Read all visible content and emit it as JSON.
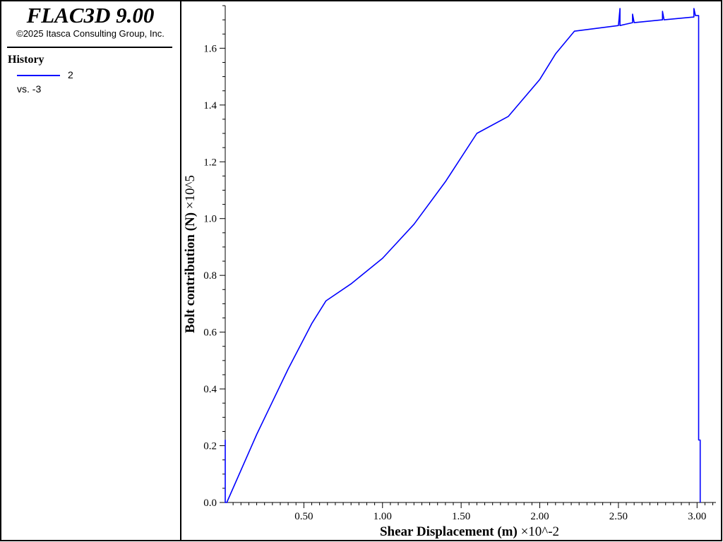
{
  "app": {
    "title": "FLAC3D 9.00",
    "copyright": "©2025 Itasca Consulting Group, Inc."
  },
  "legend": {
    "heading": "History",
    "entries": [
      {
        "label": "2",
        "vs": "vs. -3",
        "color": "#0000ff"
      }
    ]
  },
  "chart_data": {
    "type": "line",
    "title": "",
    "xlabel": "Shear Displacement (m)",
    "xscale_label": "×10^-2",
    "ylabel": "Bolt contribution (N)",
    "yscale_label": "×10^5",
    "xlim": [
      0.0,
      3.12
    ],
    "ylim": [
      0.0,
      1.75
    ],
    "xticks": [
      "0.50",
      "1.00",
      "1.50",
      "2.00",
      "2.50",
      "3.00"
    ],
    "xtick_values": [
      0.5,
      1.0,
      1.5,
      2.0,
      2.5,
      3.0
    ],
    "yticks": [
      "0.0",
      "0.2",
      "0.4",
      "0.6",
      "0.8",
      "1.0",
      "1.2",
      "1.4",
      "1.6"
    ],
    "ytick_values": [
      0.0,
      0.2,
      0.4,
      0.6,
      0.8,
      1.0,
      1.2,
      1.4,
      1.6
    ],
    "grid": false,
    "legend_placement": "left-panel",
    "series": [
      {
        "name": "2",
        "color": "#0000ff",
        "x": [
          0.0,
          0.0,
          0.0,
          0.01,
          0.2,
          0.4,
          0.55,
          0.64,
          0.8,
          1.0,
          1.2,
          1.4,
          1.6,
          1.8,
          2.0,
          2.1,
          2.22,
          2.5,
          2.51,
          2.51,
          2.55,
          2.59,
          2.59,
          2.6,
          2.78,
          2.78,
          2.79,
          2.98,
          2.98,
          2.99,
          3.01,
          3.01,
          3.02,
          3.02,
          3.02
        ],
        "y": [
          0.0,
          0.22,
          0.0,
          0.0,
          0.24,
          0.47,
          0.63,
          0.71,
          0.77,
          0.86,
          0.98,
          1.13,
          1.3,
          1.36,
          1.49,
          1.58,
          1.66,
          1.68,
          1.74,
          1.68,
          1.685,
          1.69,
          1.72,
          1.69,
          1.7,
          1.73,
          1.7,
          1.71,
          1.74,
          1.715,
          1.715,
          0.22,
          0.22,
          0.0,
          0.0
        ]
      }
    ]
  }
}
